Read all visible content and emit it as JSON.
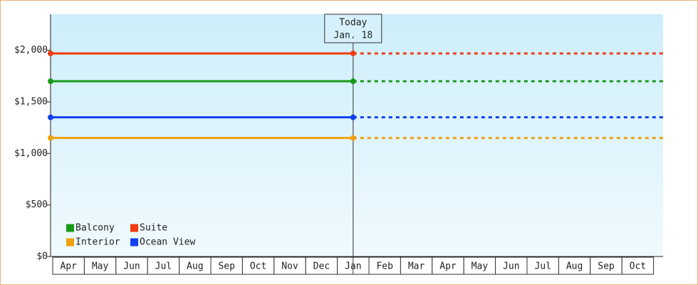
{
  "chart_data": {
    "type": "line",
    "categories": [
      "Apr",
      "May",
      "Jun",
      "Jul",
      "Aug",
      "Sep",
      "Oct",
      "Nov",
      "Dec",
      "Jan",
      "Feb",
      "Mar",
      "Apr",
      "May",
      "Jun",
      "Jul",
      "Aug",
      "Sep",
      "Oct"
    ],
    "today": {
      "label": "Today",
      "date": "Jan. 18"
    },
    "series": [
      {
        "name": "Balcony",
        "color": "#189a18",
        "value": 1700
      },
      {
        "name": "Suite",
        "color": "#f03c10",
        "value": 1970
      },
      {
        "name": "Interior",
        "color": "#f0a010",
        "value": 1150
      },
      {
        "name": "Ocean View",
        "color": "#1040f0",
        "value": 1350
      }
    ],
    "ylim": [
      0,
      2350
    ],
    "yticks": [
      {
        "value": 0,
        "label": "$0"
      },
      {
        "value": 500,
        "label": "$500"
      },
      {
        "value": 1000,
        "label": "$1,000"
      },
      {
        "value": 1500,
        "label": "$1,500"
      },
      {
        "value": 2000,
        "label": "$2,000"
      }
    ],
    "legend": "bottom-left"
  }
}
